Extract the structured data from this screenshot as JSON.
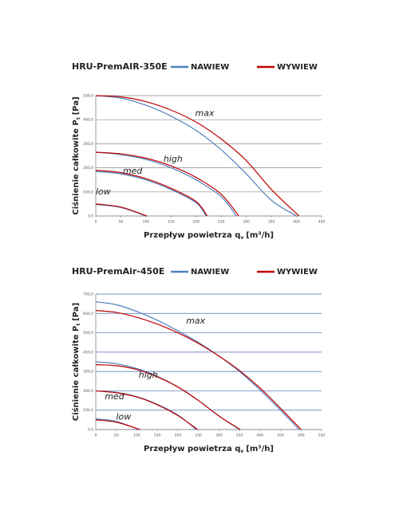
{
  "chart_data": [
    {
      "type": "line",
      "title": "HRU-PremAIR-350E",
      "x_label": {
        "text": "Przepływ powietrza q",
        "sub": "v",
        "unit": "[m³/h]"
      },
      "y_label": {
        "text": "Ciśnienie całkowite P",
        "sub": "t",
        "unit": "[Pa]"
      },
      "xlim": [
        0,
        450
      ],
      "xticks": [
        0,
        50,
        100,
        150,
        200,
        250,
        300,
        350,
        400,
        450
      ],
      "ylim": [
        0,
        500
      ],
      "yticks": [
        {
          "value": 0,
          "label": "0,0"
        },
        {
          "value": 100,
          "label": "100,0"
        },
        {
          "value": 200,
          "label": "200,0"
        },
        {
          "value": 300,
          "label": "300,0"
        },
        {
          "value": 400,
          "label": "400,0"
        },
        {
          "value": 500,
          "label": "500,0"
        }
      ],
      "grid": true,
      "grid_color": "#8c8c8c",
      "annotations": [
        "max",
        "high",
        "med",
        "low"
      ],
      "series": [
        {
          "name": "NAWIEW",
          "color": "#4f81bd",
          "curves": [
            {
              "x": [
                0,
                50,
                100,
                150,
                200,
                250,
                300,
                350,
                400
              ],
              "values": [
                500,
                490,
                460,
                415,
                355,
                275,
                175,
                65,
                0
              ]
            },
            {
              "x": [
                0,
                50,
                100,
                150,
                200,
                250,
                280
              ],
              "values": [
                265,
                255,
                235,
                200,
                150,
                80,
                0
              ]
            },
            {
              "x": [
                0,
                50,
                100,
                150,
                200,
                220
              ],
              "values": [
                185,
                175,
                150,
                110,
                55,
                0
              ]
            },
            {
              "x": [
                0,
                50,
                100
              ],
              "values": [
                48,
                35,
                0
              ]
            }
          ]
        },
        {
          "name": "WYWIEW",
          "color": "#c00000",
          "curves": [
            {
              "x": [
                0,
                50,
                100,
                150,
                200,
                250,
                300,
                350,
                405
              ],
              "values": [
                500,
                495,
                475,
                440,
                390,
                320,
                230,
                110,
                0
              ]
            },
            {
              "x": [
                0,
                50,
                100,
                150,
                200,
                250,
                285
              ],
              "values": [
                265,
                258,
                240,
                208,
                160,
                90,
                0
              ]
            },
            {
              "x": [
                0,
                50,
                100,
                150,
                200,
                222
              ],
              "values": [
                190,
                180,
                155,
                115,
                60,
                0
              ]
            },
            {
              "x": [
                0,
                50,
                102
              ],
              "values": [
                50,
                37,
                0
              ]
            }
          ]
        }
      ]
    },
    {
      "type": "line",
      "title": "HRU-PremAir-450E",
      "x_label": {
        "text": "Przepływ powietrza q",
        "sub": "v",
        "unit": "[m³/h]"
      },
      "y_label": {
        "text": "Ciśnienie całkowite P",
        "sub": "t",
        "unit": "[Pa]"
      },
      "xlim": [
        0,
        550
      ],
      "xticks": [
        0,
        50,
        100,
        150,
        200,
        250,
        300,
        350,
        400,
        450,
        500,
        550
      ],
      "ylim": [
        0,
        700
      ],
      "yticks": [
        {
          "value": 0,
          "label": "0,0"
        },
        {
          "value": 100,
          "label": "100,0"
        },
        {
          "value": 200,
          "label": "200,0"
        },
        {
          "value": 300,
          "label": "300,0"
        },
        {
          "value": 400,
          "label": "400,0"
        },
        {
          "value": 500,
          "label": "500,0"
        },
        {
          "value": 600,
          "label": "600,0"
        },
        {
          "value": 700,
          "label": "700,0"
        }
      ],
      "grid": true,
      "grid_color": "#4a6fb0",
      "annotations": [
        "max",
        "high",
        "med",
        "low"
      ],
      "series": [
        {
          "name": "NAWIEW",
          "color": "#4f81bd",
          "curves": [
            {
              "x": [
                0,
                50,
                100,
                150,
                200,
                250,
                300,
                350,
                400,
                450,
                495
              ],
              "values": [
                660,
                645,
                610,
                565,
                510,
                450,
                380,
                300,
                205,
                100,
                0
              ]
            },
            {
              "x": [
                0,
                50,
                100,
                150,
                200,
                250,
                300,
                350
              ],
              "values": [
                350,
                340,
                315,
                275,
                220,
                150,
                70,
                0
              ]
            },
            {
              "x": [
                0,
                50,
                100,
                150,
                200,
                245
              ],
              "values": [
                200,
                192,
                170,
                130,
                75,
                0
              ]
            },
            {
              "x": [
                0,
                50,
                105
              ],
              "values": [
                55,
                42,
                0
              ]
            }
          ]
        },
        {
          "name": "WYWIEW",
          "color": "#c00000",
          "curves": [
            {
              "x": [
                0,
                50,
                100,
                150,
                200,
                250,
                300,
                350,
                400,
                450,
                500
              ],
              "values": [
                615,
                605,
                580,
                545,
                500,
                445,
                380,
                305,
                215,
                110,
                0
              ]
            },
            {
              "x": [
                0,
                50,
                100,
                150,
                200,
                250,
                300,
                352
              ],
              "values": [
                335,
                330,
                310,
                272,
                220,
                150,
                70,
                0
              ]
            },
            {
              "x": [
                0,
                50,
                100,
                150,
                200,
                248
              ],
              "values": [
                200,
                190,
                168,
                128,
                72,
                0
              ]
            },
            {
              "x": [
                0,
                50,
                108
              ],
              "values": [
                50,
                38,
                0
              ]
            }
          ]
        }
      ]
    }
  ]
}
